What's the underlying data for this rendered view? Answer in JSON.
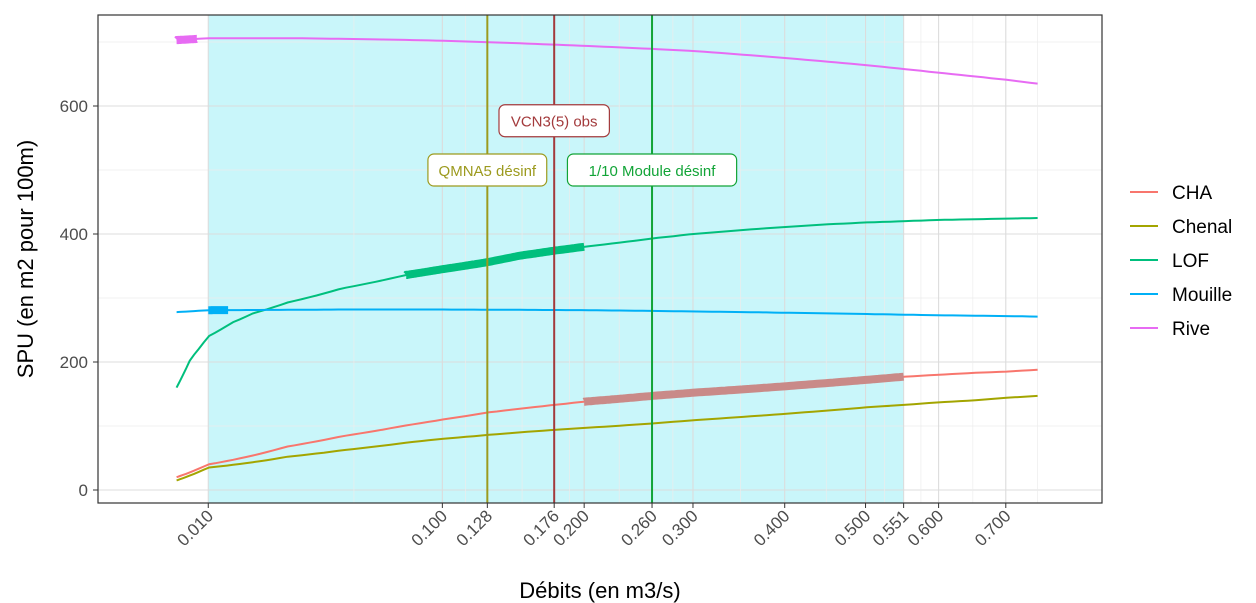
{
  "chart_data": {
    "type": "line",
    "xlabel": "Débits (en m3/s)",
    "ylabel": "SPU (en m2 pour 100m)",
    "x_scale": "sqrt",
    "xlim": [
      0.0,
      0.77
    ],
    "ylim": [
      -15,
      725
    ],
    "x_ticks": [
      "0.010",
      "0.100",
      "0.128",
      "0.176",
      "0.200",
      "0.260",
      "0.300",
      "0.400",
      "0.500",
      "0.551",
      "0.600",
      "0.700"
    ],
    "y_ticks": [
      0,
      200,
      400,
      600
    ],
    "grid": true,
    "legend_position": "right",
    "shaded_band": {
      "x_start": 0.01,
      "x_end": 0.551,
      "color": "#c9f6fa"
    },
    "series": [
      {
        "name": "CHA",
        "color": "#f8766d",
        "x": [
          0.005,
          0.01,
          0.03,
          0.05,
          0.08,
          0.1,
          0.128,
          0.15,
          0.176,
          0.2,
          0.26,
          0.3,
          0.35,
          0.4,
          0.45,
          0.5,
          0.551,
          0.6,
          0.65,
          0.7,
          0.75
        ],
        "y": [
          20,
          40,
          68,
          84,
          101,
          110,
          121,
          127,
          133,
          138,
          147,
          152,
          157,
          162,
          167,
          172,
          177,
          180,
          183,
          185,
          188
        ],
        "highlight": [
          0.2,
          0.551
        ]
      },
      {
        "name": "Chenal",
        "color": "#a3a500",
        "x": [
          0.005,
          0.01,
          0.03,
          0.05,
          0.08,
          0.1,
          0.128,
          0.15,
          0.176,
          0.2,
          0.26,
          0.3,
          0.35,
          0.4,
          0.45,
          0.5,
          0.551,
          0.6,
          0.65,
          0.7,
          0.75
        ],
        "y": [
          15,
          35,
          52,
          62,
          74,
          80,
          86,
          90,
          94,
          97,
          104,
          109,
          114,
          119,
          124,
          129,
          133,
          137,
          140,
          144,
          147
        ]
      },
      {
        "name": "LOF",
        "color": "#00bf7d",
        "x": [
          0.005,
          0.007,
          0.01,
          0.015,
          0.02,
          0.03,
          0.05,
          0.08,
          0.1,
          0.128,
          0.15,
          0.176,
          0.2,
          0.26,
          0.3,
          0.35,
          0.4,
          0.45,
          0.5,
          0.551,
          0.6,
          0.65,
          0.7,
          0.75
        ],
        "y": [
          160,
          205,
          240,
          262,
          276,
          293,
          315,
          336,
          345,
          356,
          366,
          374,
          380,
          393,
          400,
          406,
          411,
          415,
          418,
          420,
          422,
          423,
          424,
          425
        ],
        "highlight": [
          0.08,
          0.2
        ]
      },
      {
        "name": "Mouille",
        "color": "#00b0f6",
        "x": [
          0.005,
          0.01,
          0.05,
          0.1,
          0.2,
          0.3,
          0.4,
          0.5,
          0.6,
          0.75
        ],
        "y": [
          278,
          281,
          282,
          282,
          281,
          279,
          277,
          275,
          273,
          271
        ],
        "highlight": [
          0.01,
          0.014
        ]
      },
      {
        "name": "Rive",
        "color": "#e76bf3",
        "x": [
          0.005,
          0.01,
          0.03,
          0.05,
          0.1,
          0.15,
          0.2,
          0.3,
          0.4,
          0.5,
          0.6,
          0.7,
          0.75
        ],
        "y": [
          703,
          706,
          706,
          705,
          702,
          698,
          694,
          686,
          675,
          664,
          652,
          641,
          635
        ],
        "highlight": [
          0.005,
          0.008
        ]
      }
    ],
    "vlines": [
      {
        "x": 0.128,
        "color": "#9c9a1e",
        "label": "QMNA5 désinf",
        "label_y": 500
      },
      {
        "x": 0.176,
        "color": "#a33a3c",
        "label": "VCN3(5) obs",
        "label_y": 577
      },
      {
        "x": 0.26,
        "color": "#12a437",
        "label": "1/10 Module désinf",
        "label_y": 500
      }
    ]
  }
}
